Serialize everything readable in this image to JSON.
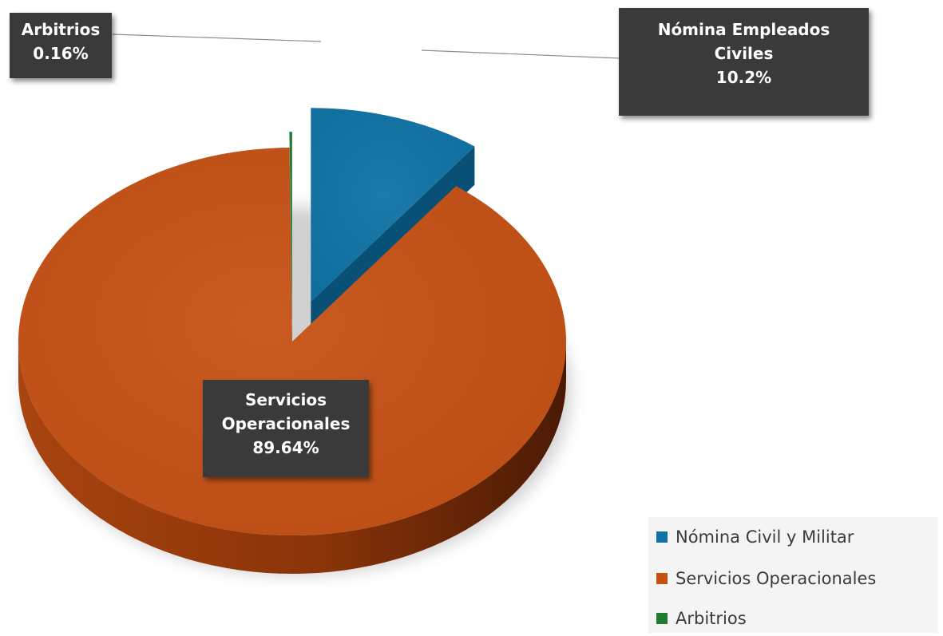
{
  "chart_data": {
    "type": "pie",
    "categories": [
      "Nómina Civil y Militar",
      "Servicios Operacionales",
      "Arbitrios"
    ],
    "values": [
      10.2,
      89.64,
      0.16
    ],
    "colors": [
      "#0e72a4",
      "#c55014",
      "#1f7a32"
    ],
    "data_labels": [
      {
        "lines": [
          "Nómina Empleados",
          "Civiles"
        ],
        "value": "10.2%"
      },
      {
        "lines": [
          "Servicios",
          "Operacionales"
        ],
        "value": "89.64%"
      },
      {
        "lines": [
          "Arbitrios"
        ],
        "value": "0.16%"
      }
    ],
    "legend": {
      "placement": "bottom-right",
      "entries": [
        "Nómina Civil y Militar",
        "Servicios Operacionales",
        "Arbitrios"
      ]
    },
    "style": "3d-exploded"
  }
}
